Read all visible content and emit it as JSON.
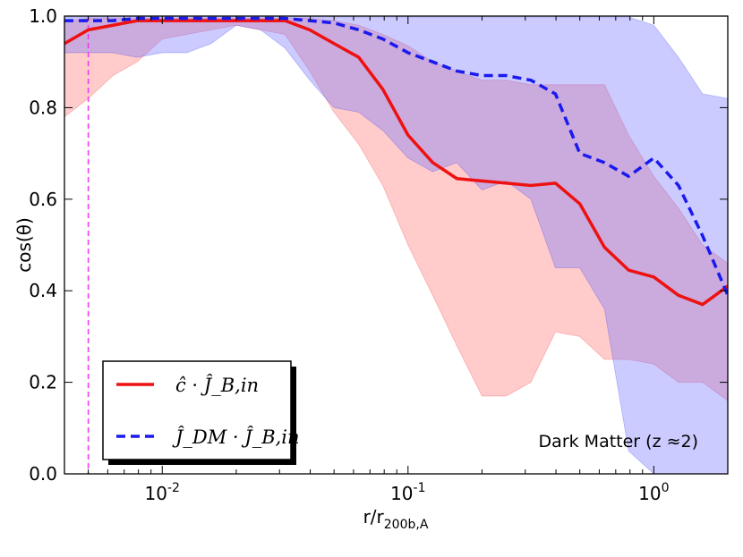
{
  "chart_data": {
    "type": "line",
    "xscale": "log",
    "xlim": [
      0.004,
      2.0
    ],
    "ylim": [
      0.0,
      1.0
    ],
    "xlabel": "r/r",
    "xlabel_sub": "200b,A",
    "ylabel": "cos(θ)",
    "x_ticks": [
      {
        "value": 0.01,
        "base": "10",
        "exp": "-2"
      },
      {
        "value": 0.1,
        "base": "10",
        "exp": "-1"
      },
      {
        "value": 1.0,
        "base": "10",
        "exp": "0"
      }
    ],
    "y_ticks": [
      {
        "value": 0.0,
        "label": "0.0"
      },
      {
        "value": 0.2,
        "label": "0.2"
      },
      {
        "value": 0.4,
        "label": "0.4"
      },
      {
        "value": 0.6,
        "label": "0.6"
      },
      {
        "value": 0.8,
        "label": "0.8"
      },
      {
        "value": 1.0,
        "label": "1.0"
      }
    ],
    "vline": {
      "x": 0.005,
      "color": "#ee33ee"
    },
    "annotation": "Dark Matter (z ≈2)",
    "legend": {
      "placement": "lower-left",
      "entries": [
        {
          "label": "ĉ · Ĵ_B,in",
          "color": "#ee1111",
          "style": "solid"
        },
        {
          "label": "Ĵ_DM · Ĵ_B,in",
          "color": "#1a1aee",
          "style": "dashed"
        }
      ]
    },
    "series": [
      {
        "name": "c_hat dot J_B,in",
        "color": "#ee1111",
        "style": "solid",
        "x": [
          0.004,
          0.005,
          0.0063,
          0.0079,
          0.01,
          0.0126,
          0.0158,
          0.02,
          0.0251,
          0.0316,
          0.0398,
          0.05,
          0.063,
          0.079,
          0.1,
          0.126,
          0.158,
          0.2,
          0.251,
          0.316,
          0.398,
          0.5,
          0.63,
          0.79,
          1.0,
          1.26,
          1.58,
          2.0
        ],
        "values": [
          0.94,
          0.97,
          0.98,
          0.99,
          0.99,
          0.99,
          0.99,
          0.99,
          0.99,
          0.99,
          0.97,
          0.94,
          0.91,
          0.84,
          0.74,
          0.68,
          0.645,
          0.64,
          0.635,
          0.63,
          0.635,
          0.59,
          0.495,
          0.445,
          0.43,
          0.39,
          0.37,
          0.41
        ],
        "band_upper": [
          0.99,
          0.995,
          0.995,
          0.995,
          0.995,
          0.995,
          0.995,
          0.995,
          0.995,
          0.995,
          0.995,
          0.99,
          0.98,
          0.96,
          0.935,
          0.9,
          0.88,
          0.86,
          0.86,
          0.85,
          0.85,
          0.85,
          0.85,
          0.74,
          0.65,
          0.58,
          0.5,
          0.46
        ],
        "band_lower": [
          0.78,
          0.82,
          0.87,
          0.9,
          0.95,
          0.96,
          0.97,
          0.98,
          0.97,
          0.96,
          0.88,
          0.79,
          0.72,
          0.63,
          0.5,
          0.39,
          0.28,
          0.17,
          0.17,
          0.2,
          0.31,
          0.3,
          0.25,
          0.25,
          0.24,
          0.2,
          0.2,
          0.16
        ]
      },
      {
        "name": "J_DM dot J_B,in",
        "color": "#1a1aee",
        "style": "dashed",
        "x": [
          0.004,
          0.005,
          0.0063,
          0.0079,
          0.01,
          0.0126,
          0.0158,
          0.02,
          0.0251,
          0.0316,
          0.0398,
          0.05,
          0.063,
          0.079,
          0.1,
          0.126,
          0.158,
          0.2,
          0.251,
          0.316,
          0.398,
          0.5,
          0.63,
          0.79,
          1.0,
          1.26,
          1.58,
          2.0
        ],
        "values": [
          0.99,
          0.99,
          0.99,
          0.995,
          0.995,
          0.995,
          0.995,
          0.995,
          0.995,
          0.995,
          0.99,
          0.985,
          0.97,
          0.95,
          0.92,
          0.9,
          0.88,
          0.87,
          0.87,
          0.86,
          0.83,
          0.7,
          0.68,
          0.65,
          0.69,
          0.63,
          0.52,
          0.39
        ],
        "band_upper": [
          0.998,
          0.998,
          0.998,
          0.998,
          0.998,
          0.998,
          0.998,
          0.998,
          0.998,
          0.998,
          0.998,
          0.998,
          0.998,
          0.998,
          0.998,
          0.998,
          0.998,
          0.998,
          0.998,
          0.998,
          0.998,
          0.998,
          0.998,
          0.998,
          0.98,
          0.91,
          0.83,
          0.82
        ],
        "band_lower": [
          0.92,
          0.92,
          0.92,
          0.91,
          0.92,
          0.92,
          0.94,
          0.98,
          0.97,
          0.93,
          0.86,
          0.8,
          0.79,
          0.75,
          0.69,
          0.66,
          0.68,
          0.62,
          0.64,
          0.6,
          0.45,
          0.45,
          0.36,
          0.05,
          0.0,
          0.0,
          0.0,
          0.0
        ]
      }
    ]
  }
}
